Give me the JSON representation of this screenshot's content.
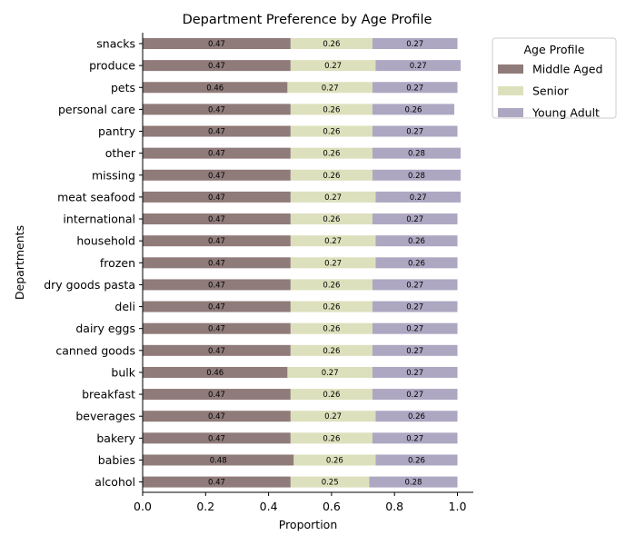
{
  "chart_data": {
    "type": "bar",
    "orientation": "horizontal",
    "stacked": true,
    "title": "Department Preference by Age Profile",
    "xlabel": "Proportion",
    "ylabel": "Departments",
    "xlim": [
      0,
      1.05
    ],
    "xticks": [
      "0.0",
      "0.2",
      "0.4",
      "0.6",
      "0.8",
      "1.0"
    ],
    "grid": false,
    "legend": {
      "title": "Age Profile",
      "position": "outside-top-right"
    },
    "colors": {
      "Middle Aged": "#8f7b79",
      "Senior": "#dde0bc",
      "Young Adult": "#aea7c2"
    },
    "categories": [
      "alcohol",
      "babies",
      "bakery",
      "beverages",
      "breakfast",
      "bulk",
      "canned goods",
      "dairy eggs",
      "deli",
      "dry goods pasta",
      "frozen",
      "household",
      "international",
      "meat seafood",
      "missing",
      "other",
      "pantry",
      "personal care",
      "pets",
      "produce",
      "snacks"
    ],
    "series": [
      {
        "name": "Middle Aged",
        "values": [
          0.47,
          0.48,
          0.47,
          0.47,
          0.47,
          0.46,
          0.47,
          0.47,
          0.47,
          0.47,
          0.47,
          0.47,
          0.47,
          0.47,
          0.47,
          0.47,
          0.47,
          0.47,
          0.46,
          0.47,
          0.47
        ]
      },
      {
        "name": "Senior",
        "values": [
          0.25,
          0.26,
          0.26,
          0.27,
          0.26,
          0.27,
          0.26,
          0.26,
          0.26,
          0.26,
          0.27,
          0.27,
          0.26,
          0.27,
          0.26,
          0.26,
          0.26,
          0.26,
          0.27,
          0.27,
          0.26
        ]
      },
      {
        "name": "Young Adult",
        "values": [
          0.28,
          0.26,
          0.27,
          0.26,
          0.27,
          0.27,
          0.27,
          0.27,
          0.27,
          0.27,
          0.26,
          0.26,
          0.27,
          0.27,
          0.28,
          0.28,
          0.27,
          0.26,
          0.27,
          0.27,
          0.27
        ]
      }
    ]
  }
}
